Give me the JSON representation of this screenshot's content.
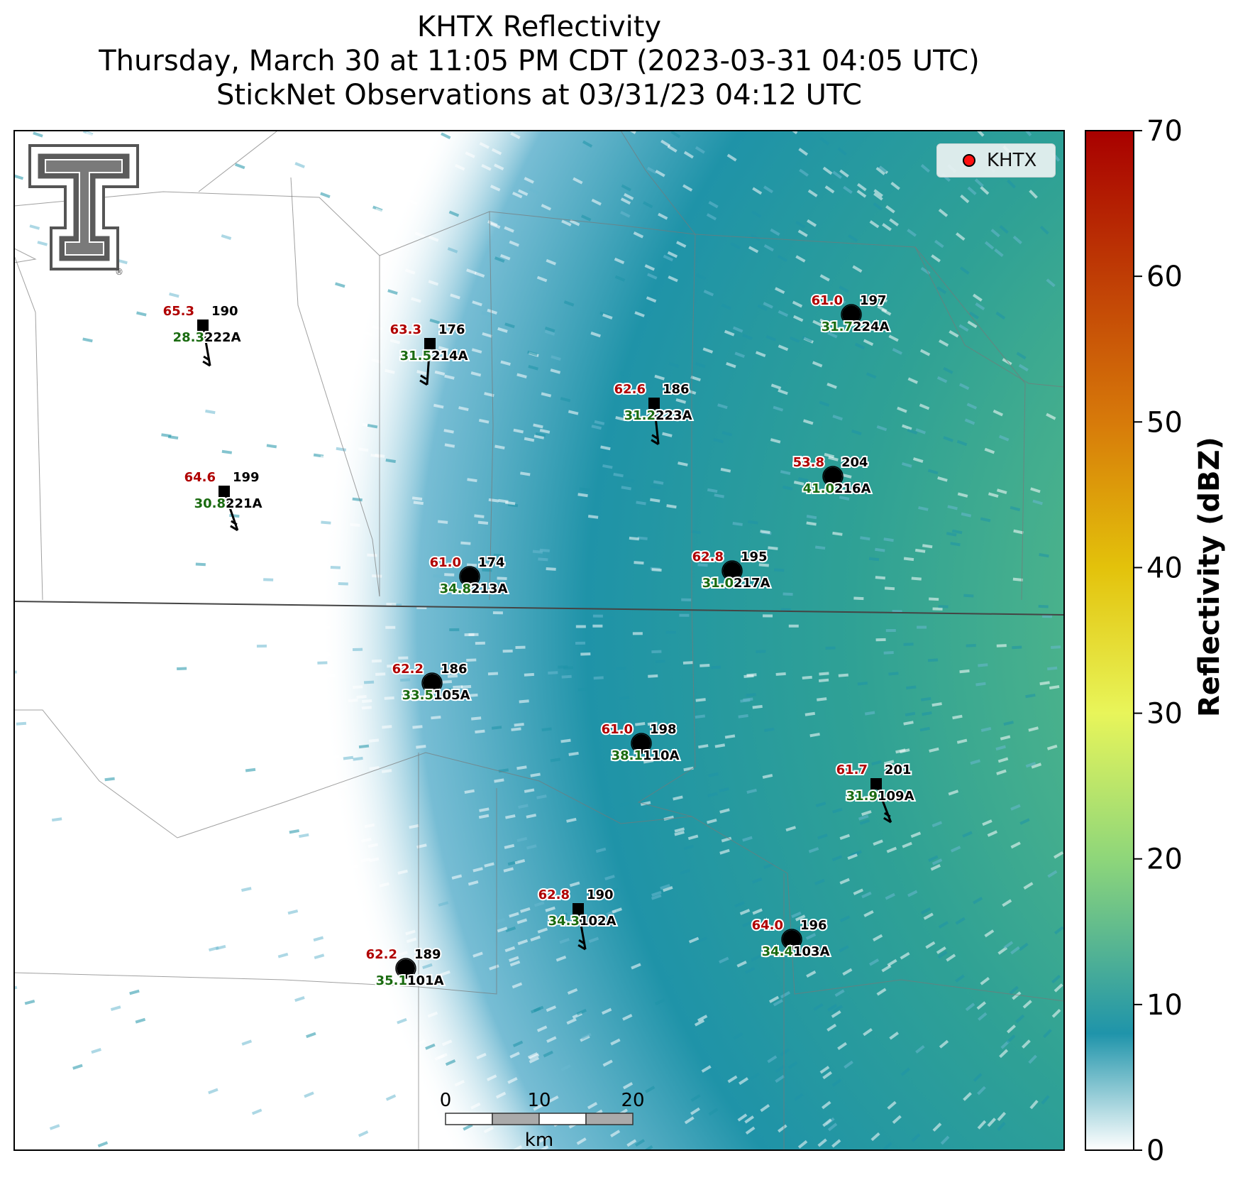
{
  "title": {
    "line1": "KHTX Reflectivity",
    "line2": "Thursday, March 30 at 11:05 PM CDT (2023-03-31 04:05 UTC)",
    "line3": "StickNet Observations at 03/31/23 04:12 UTC"
  },
  "legend": {
    "label": "KHTX",
    "color": "#ff1010"
  },
  "logo": {
    "name": "Texas Tech double-T logo",
    "trademark": "®"
  },
  "colorbar": {
    "label": "Reflectivity (dBZ)",
    "min": 0,
    "max": 70,
    "ticks": [
      "0",
      "10",
      "20",
      "30",
      "40",
      "50",
      "60",
      "70"
    ],
    "stops": [
      {
        "value": 0,
        "color": "#ffffff"
      },
      {
        "value": 8,
        "color": "#1f94aa"
      },
      {
        "value": 20,
        "color": "#8ed67a"
      },
      {
        "value": 30,
        "color": "#e8f55a"
      },
      {
        "value": 40,
        "color": "#e3c20b"
      },
      {
        "value": 50,
        "color": "#d77a0a"
      },
      {
        "value": 70,
        "color": "#a80000"
      }
    ]
  },
  "scale_bar": {
    "labels": [
      "0",
      "10",
      "20"
    ],
    "unit": "km"
  },
  "colors": {
    "temperature": "#b00000",
    "dewpoint": "#1a6b10",
    "station": "#000000"
  },
  "stations": [
    {
      "id": "222A",
      "temp": "65.3",
      "dew": "28.3",
      "dir": "190",
      "marker": "square",
      "barb": true
    },
    {
      "id": "214A",
      "temp": "63.3",
      "dew": "31.5",
      "dir": "176",
      "marker": "square",
      "barb": true
    },
    {
      "id": "223A",
      "temp": "62.6",
      "dew": "31.2",
      "dir": "186",
      "marker": "square",
      "barb": true
    },
    {
      "id": "224A",
      "temp": "61.0",
      "dew": "31.7",
      "dir": "197",
      "marker": "circle",
      "barb": false
    },
    {
      "id": "221A",
      "temp": "64.6",
      "dew": "30.8",
      "dir": "199",
      "marker": "square",
      "barb": true
    },
    {
      "id": "216A",
      "temp": "53.8",
      "dew": "41.0",
      "dir": "204",
      "marker": "circle",
      "barb": false
    },
    {
      "id": "213A",
      "temp": "61.0",
      "dew": "34.8",
      "dir": "174",
      "marker": "circle",
      "barb": false
    },
    {
      "id": "217A",
      "temp": "62.8",
      "dew": "31.0",
      "dir": "195",
      "marker": "circle",
      "barb": false
    },
    {
      "id": "105A",
      "temp": "62.2",
      "dew": "33.5",
      "dir": "186",
      "marker": "circle",
      "barb": false
    },
    {
      "id": "110A",
      "temp": "61.0",
      "dew": "38.1",
      "dir": "198",
      "marker": "circle",
      "barb": false
    },
    {
      "id": "109A",
      "temp": "61.7",
      "dew": "31.9",
      "dir": "201",
      "marker": "square",
      "barb": true
    },
    {
      "id": "102A",
      "temp": "62.8",
      "dew": "34.3",
      "dir": "190",
      "marker": "square",
      "barb": true
    },
    {
      "id": "103A",
      "temp": "64.0",
      "dew": "34.4",
      "dir": "196",
      "marker": "circle",
      "barb": false
    },
    {
      "id": "101A",
      "temp": "62.2",
      "dew": "35.1",
      "dir": "189",
      "marker": "circle",
      "barb": false
    }
  ]
}
